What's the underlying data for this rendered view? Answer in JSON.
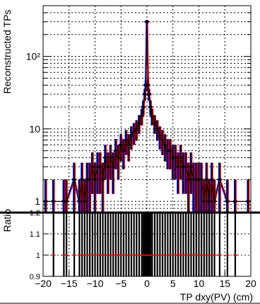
{
  "chart_data": [
    {
      "type": "line",
      "ylabel": "Reconstructed TPs",
      "xlabel": "",
      "xlim": [
        -20,
        20
      ],
      "ylim": [
        0.7,
        500
      ],
      "yscale": "log",
      "grid": true,
      "y_ticks": [
        {
          "value": 1,
          "label": "1"
        },
        {
          "value": 10,
          "label": "10"
        },
        {
          "value": 100,
          "label": "10²"
        }
      ],
      "colors": {
        "series_a": "#0000ff",
        "series_b": "#ff0000",
        "series_c": "#000000"
      },
      "series": [
        {
          "x": [
            -19.5,
            -18,
            -16,
            -15.5,
            -14,
            -13,
            -12.5,
            -12,
            -11.5,
            -11,
            -10.5,
            -10,
            -9.5,
            -9,
            -8.5,
            -8,
            -7.5,
            -7,
            -6.5,
            -6,
            -5.5,
            -5,
            -4.5,
            -4,
            -3.5,
            -3,
            -2.5,
            -2,
            -1.5,
            -1,
            -0.7,
            -0.4,
            -0.2,
            0,
            0.2,
            0.4,
            0.7,
            1,
            1.5,
            2,
            2.5,
            3,
            3.5,
            4,
            4.5,
            5,
            5.5,
            6,
            6.5,
            7,
            7.5,
            8,
            8.5,
            9,
            9.5,
            10,
            10.5,
            11,
            11.5,
            12,
            12.5,
            13,
            14,
            15.5,
            17,
            19.5
          ],
          "values": [
            1,
            1,
            1,
            1,
            2,
            1,
            2,
            1,
            2,
            2,
            3,
            2,
            3,
            3,
            2,
            4,
            3,
            4,
            3,
            5,
            4,
            6,
            5,
            7,
            6,
            8,
            9,
            10,
            12,
            15,
            20,
            30,
            40,
            300,
            40,
            30,
            20,
            15,
            12,
            10,
            8,
            7,
            6,
            5,
            5,
            4,
            4,
            3,
            4,
            3,
            3,
            2,
            3,
            2,
            2,
            2,
            2,
            1,
            2,
            1,
            2,
            1,
            2,
            1,
            1,
            1
          ]
        }
      ]
    },
    {
      "type": "line",
      "ylabel": "Ratio",
      "xlabel": "TP dxy(PV) (cm)",
      "xlim": [
        -20,
        20
      ],
      "ylim": [
        0.9,
        1.2
      ],
      "grid": true,
      "x_ticks": [
        {
          "value": -20,
          "label": "−20"
        },
        {
          "value": -15,
          "label": "−15"
        },
        {
          "value": -10,
          "label": "−10"
        },
        {
          "value": -5,
          "label": "−5"
        },
        {
          "value": 0,
          "label": "0"
        },
        {
          "value": 5,
          "label": "5"
        },
        {
          "value": 10,
          "label": "10"
        },
        {
          "value": 15,
          "label": "15"
        },
        {
          "value": 20,
          "label": "20"
        }
      ],
      "y_ticks": [
        {
          "value": 0.9,
          "label": "0.9"
        },
        {
          "value": 1.0,
          "label": "1"
        },
        {
          "value": 1.1,
          "label": "1.1"
        },
        {
          "value": 1.2,
          "label": "1.2"
        }
      ],
      "reference": 1.0
    }
  ]
}
